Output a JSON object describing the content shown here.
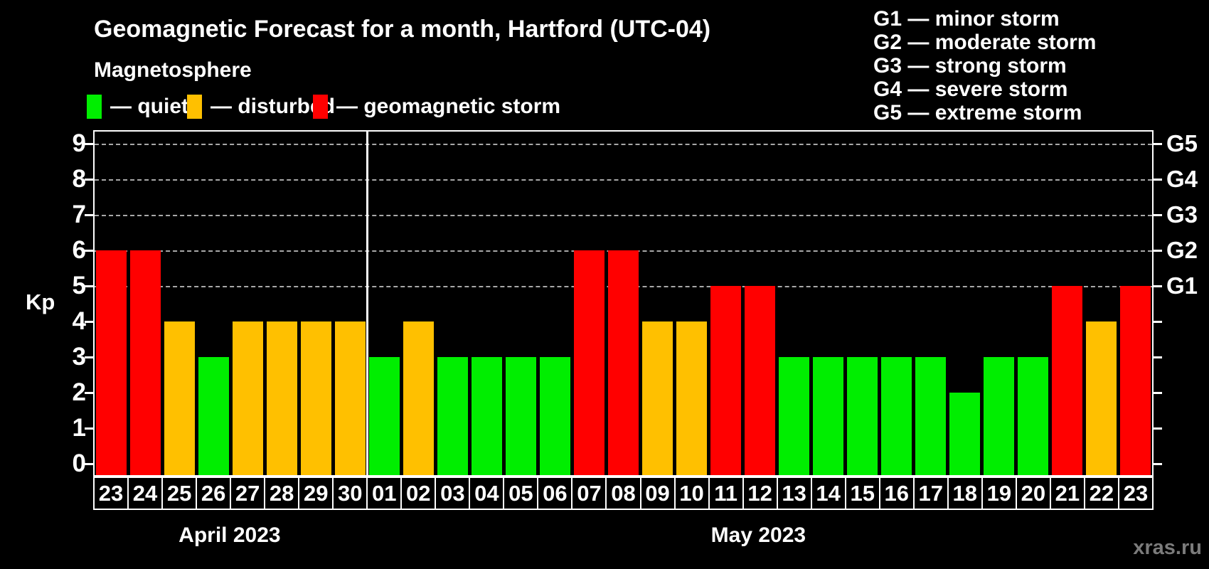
{
  "header": {
    "title": "Geomagnetic Forecast for a month, Hartford (UTC-04)",
    "subtitle": "Magnetosphere"
  },
  "legend": {
    "items": [
      {
        "key": "quiet",
        "label": "— quiet",
        "color": "#00ee00"
      },
      {
        "key": "disturbed",
        "label": "— disturbed",
        "color": "#ffc000"
      },
      {
        "key": "storm",
        "label": "— geomagnetic storm",
        "color": "#ff0000"
      }
    ]
  },
  "g_scale_legend": {
    "items": [
      "G1 — minor storm",
      "G2 — moderate storm",
      "G3 — strong storm",
      "G4 — severe storm",
      "G5 — extreme storm"
    ]
  },
  "watermark": "xras.ru",
  "colors": {
    "quiet": "#00ee00",
    "disturbed": "#ffc000",
    "storm": "#ff0000",
    "grid": "#a8a8a8",
    "axis": "#ffffff",
    "background": "#000000",
    "watermark": "#7b7b7b"
  },
  "chart_data": {
    "type": "bar",
    "title": "Geomagnetic Forecast for a month, Hartford (UTC-04)",
    "ylabel": "Kp",
    "ylim": [
      0,
      9
    ],
    "yticks": [
      0,
      1,
      2,
      3,
      4,
      5,
      6,
      7,
      8,
      9
    ],
    "grid_levels": [
      5,
      6,
      7,
      8,
      9
    ],
    "grid": "dashed horizontal lines at storm levels only",
    "legend_position": "top",
    "right_axis": [
      {
        "kp": 5,
        "label": "G1"
      },
      {
        "kp": 6,
        "label": "G2"
      },
      {
        "kp": 7,
        "label": "G3"
      },
      {
        "kp": 8,
        "label": "G4"
      },
      {
        "kp": 9,
        "label": "G5"
      }
    ],
    "months": [
      {
        "label": "April 2023",
        "days": 8
      },
      {
        "label": "May 2023",
        "days": 23
      }
    ],
    "bars": [
      {
        "date": "23",
        "month": "April 2023",
        "kp": 6,
        "status": "storm"
      },
      {
        "date": "24",
        "month": "April 2023",
        "kp": 6,
        "status": "storm"
      },
      {
        "date": "25",
        "month": "April 2023",
        "kp": 4,
        "status": "disturbed"
      },
      {
        "date": "26",
        "month": "April 2023",
        "kp": 3,
        "status": "quiet"
      },
      {
        "date": "27",
        "month": "April 2023",
        "kp": 4,
        "status": "disturbed"
      },
      {
        "date": "28",
        "month": "April 2023",
        "kp": 4,
        "status": "disturbed"
      },
      {
        "date": "29",
        "month": "April 2023",
        "kp": 4,
        "status": "disturbed"
      },
      {
        "date": "30",
        "month": "April 2023",
        "kp": 4,
        "status": "disturbed"
      },
      {
        "date": "01",
        "month": "May 2023",
        "kp": 3,
        "status": "quiet"
      },
      {
        "date": "02",
        "month": "May 2023",
        "kp": 4,
        "status": "disturbed"
      },
      {
        "date": "03",
        "month": "May 2023",
        "kp": 3,
        "status": "quiet"
      },
      {
        "date": "04",
        "month": "May 2023",
        "kp": 3,
        "status": "quiet"
      },
      {
        "date": "05",
        "month": "May 2023",
        "kp": 3,
        "status": "quiet"
      },
      {
        "date": "06",
        "month": "May 2023",
        "kp": 3,
        "status": "quiet"
      },
      {
        "date": "07",
        "month": "May 2023",
        "kp": 6,
        "status": "storm"
      },
      {
        "date": "08",
        "month": "May 2023",
        "kp": 6,
        "status": "storm"
      },
      {
        "date": "09",
        "month": "May 2023",
        "kp": 4,
        "status": "disturbed"
      },
      {
        "date": "10",
        "month": "May 2023",
        "kp": 4,
        "status": "disturbed"
      },
      {
        "date": "11",
        "month": "May 2023",
        "kp": 5,
        "status": "storm"
      },
      {
        "date": "12",
        "month": "May 2023",
        "kp": 5,
        "status": "storm"
      },
      {
        "date": "13",
        "month": "May 2023",
        "kp": 3,
        "status": "quiet"
      },
      {
        "date": "14",
        "month": "May 2023",
        "kp": 3,
        "status": "quiet"
      },
      {
        "date": "15",
        "month": "May 2023",
        "kp": 3,
        "status": "quiet"
      },
      {
        "date": "16",
        "month": "May 2023",
        "kp": 3,
        "status": "quiet"
      },
      {
        "date": "17",
        "month": "May 2023",
        "kp": 3,
        "status": "quiet"
      },
      {
        "date": "18",
        "month": "May 2023",
        "kp": 2,
        "status": "quiet"
      },
      {
        "date": "19",
        "month": "May 2023",
        "kp": 3,
        "status": "quiet"
      },
      {
        "date": "20",
        "month": "May 2023",
        "kp": 3,
        "status": "quiet"
      },
      {
        "date": "21",
        "month": "May 2023",
        "kp": 5,
        "status": "storm"
      },
      {
        "date": "22",
        "month": "May 2023",
        "kp": 4,
        "status": "disturbed"
      },
      {
        "date": "23",
        "month": "May 2023",
        "kp": 5,
        "status": "storm"
      }
    ]
  }
}
